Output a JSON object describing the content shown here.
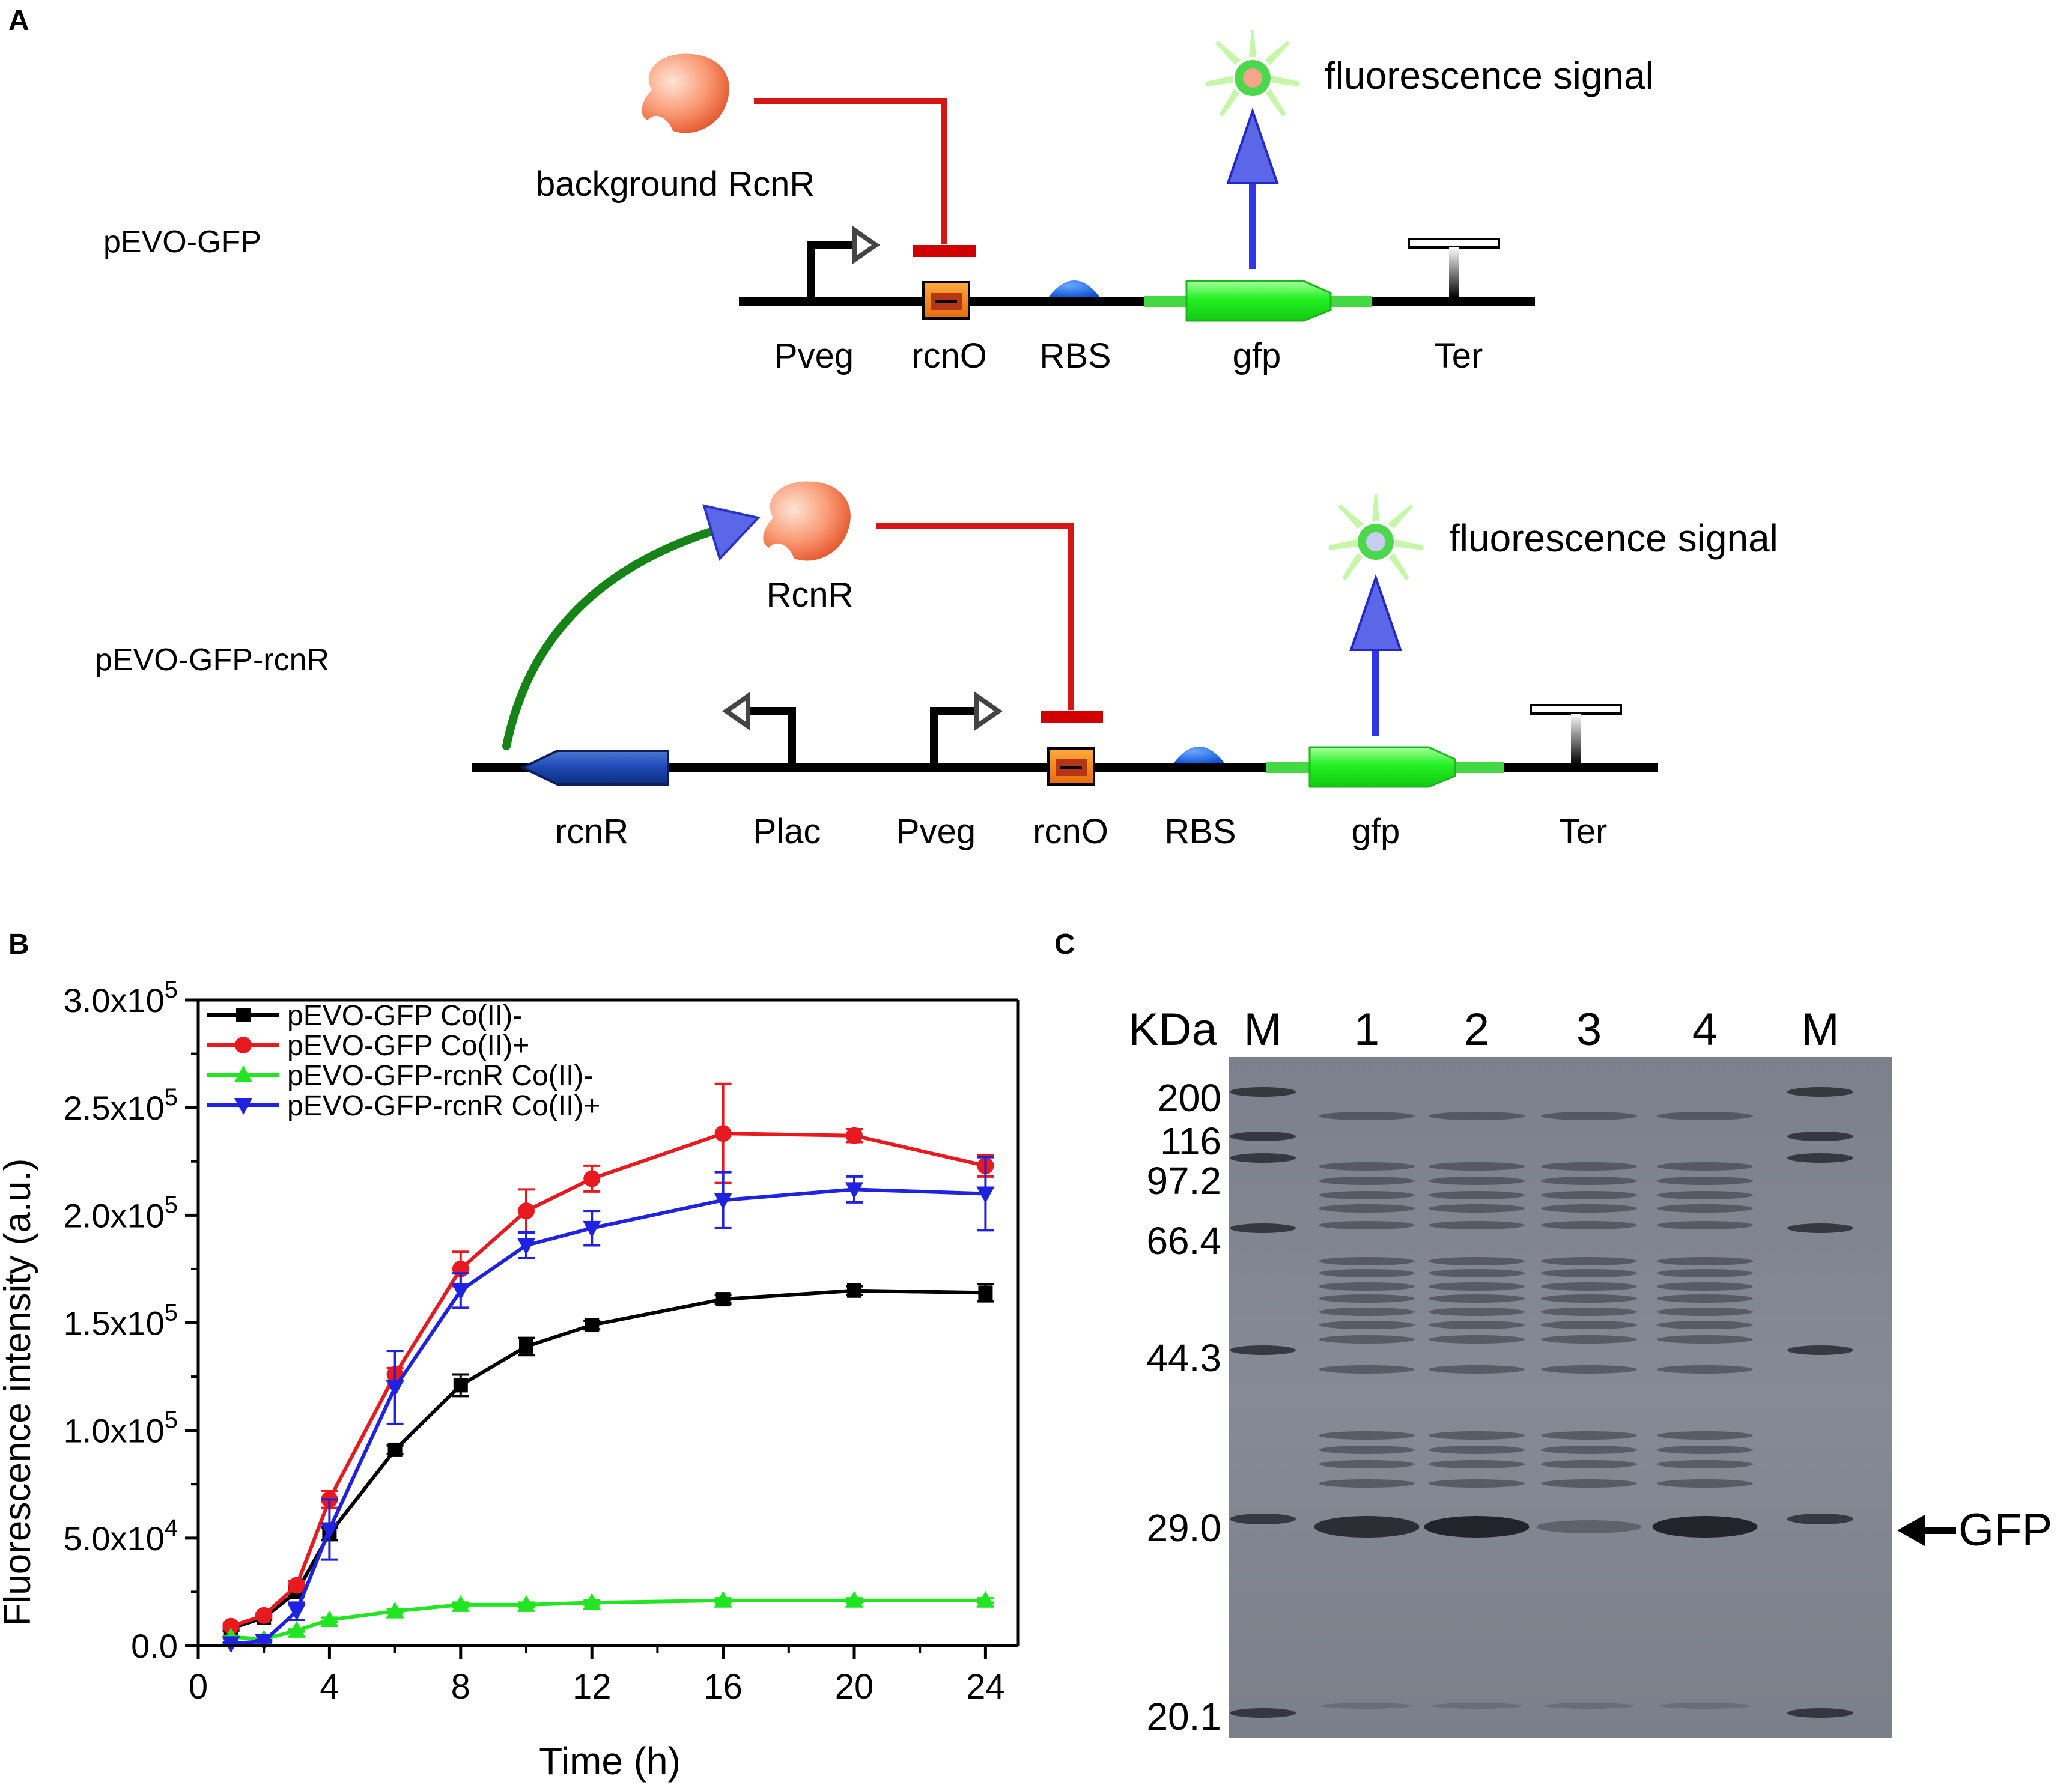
{
  "panels": {
    "a": "A",
    "b": "B",
    "c": "C"
  },
  "panel_a": {
    "top": {
      "construct": "pEVO-GFP",
      "repressor": "background RcnR",
      "signal": "fluorescence signal",
      "parts": [
        "Pveg",
        "rcnO",
        "RBS",
        "gfp",
        "Ter"
      ]
    },
    "bottom": {
      "construct": "pEVO-GFP-rcnR",
      "repressor": "RcnR",
      "signal": "fluorescence signal",
      "parts": [
        "rcnR",
        "Plac",
        "Pveg",
        "rcnO",
        "RBS",
        "gfp",
        "Ter"
      ]
    }
  },
  "chart_data": {
    "type": "line",
    "xlabel": "Time (h)",
    "ylabel": "Fluorescence intensity (a.u.)",
    "xlim": [
      0,
      25
    ],
    "ylim": [
      0,
      300000
    ],
    "xticks": [
      "0",
      "4",
      "8",
      "12",
      "16",
      "20",
      "24"
    ],
    "yticks": [
      {
        "m": "0.0",
        "e": ""
      },
      {
        "m": "5.0x10",
        "e": "4"
      },
      {
        "m": "1.0x10",
        "e": "5"
      },
      {
        "m": "1.5x10",
        "e": "5"
      },
      {
        "m": "2.0x10",
        "e": "5"
      },
      {
        "m": "2.5x10",
        "e": "5"
      },
      {
        "m": "3.0x10",
        "e": "5"
      }
    ],
    "legend_position": "top-left",
    "x": [
      1,
      2,
      3,
      4,
      6,
      8,
      10,
      12,
      16,
      20,
      24
    ],
    "series": [
      {
        "name": "pEVO-GFP Co(II)-",
        "color": "#000000",
        "marker": "square",
        "values": [
          8000,
          13000,
          25000,
          52000,
          91000,
          121000,
          139000,
          149000,
          161000,
          165000,
          164000
        ],
        "errors": [
          1000,
          1000,
          2000,
          3000,
          2000,
          5000,
          4000,
          2000,
          2000,
          2000,
          4000
        ]
      },
      {
        "name": "pEVO-GFP Co(II)+",
        "color": "#e8191f",
        "marker": "circle",
        "values": [
          9000,
          14000,
          28000,
          68000,
          126000,
          175000,
          202000,
          217000,
          238000,
          237000,
          223000
        ],
        "errors": [
          1000,
          1000,
          2000,
          4000,
          3000,
          8000,
          10000,
          6000,
          23000,
          3000,
          5000
        ]
      },
      {
        "name": "pEVO-GFP-rcnR Co(II)-",
        "color": "#22e522",
        "marker": "triangle-up",
        "values": [
          4000,
          3000,
          7000,
          12000,
          16000,
          19000,
          19000,
          20000,
          21000,
          21000,
          21000
        ],
        "errors": [
          500,
          500,
          500,
          1000,
          1000,
          1000,
          1000,
          1000,
          1000,
          1000,
          1000
        ]
      },
      {
        "name": "pEVO-GFP-rcnR Co(II)+",
        "color": "#1f22e0",
        "marker": "triangle-down",
        "values": [
          1000,
          2000,
          16000,
          54000,
          120000,
          165000,
          186000,
          194000,
          207000,
          212000,
          210000
        ],
        "errors": [
          500,
          500,
          4000,
          14000,
          17000,
          8000,
          6000,
          8000,
          13000,
          6000,
          17000
        ]
      }
    ]
  },
  "gel": {
    "unit_label": "KDa",
    "lanes": [
      "M",
      "1",
      "2",
      "3",
      "4",
      "M"
    ],
    "markers": [
      "200",
      "116",
      "97.2",
      "66.4",
      "44.3",
      "29.0",
      "20.1"
    ],
    "arrow_label": "GFP"
  }
}
